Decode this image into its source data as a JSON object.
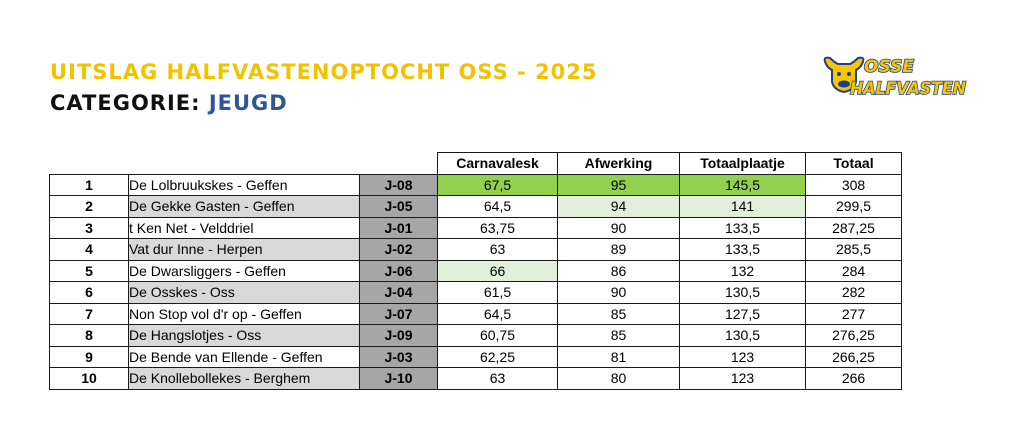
{
  "header": {
    "title": "UITSLAG HALFVASTENOPTOCHT OSS - 2025",
    "subtitle_prefix": "CATEGORIE: ",
    "category": "JEUGD"
  },
  "logo": {
    "line1": "OSSE",
    "line2": "HALFVASTEN",
    "colors": {
      "yellow": "#f6c600",
      "blue": "#1f3e8c"
    }
  },
  "table": {
    "columns": [
      "Carnavalesk",
      "Afwerking",
      "Totaalplaatje",
      "Totaal"
    ],
    "rows": [
      {
        "rank": "1",
        "name": "De Lolbruukskes - Geffen",
        "code": "J-08",
        "carnavalesk": "67,5",
        "afwerking": "95",
        "totaalplaatje": "145,5",
        "totaal": "308"
      },
      {
        "rank": "2",
        "name": "De Gekke Gasten - Geffen",
        "code": "J-05",
        "carnavalesk": "64,5",
        "afwerking": "94",
        "totaalplaatje": "141",
        "totaal": "299,5"
      },
      {
        "rank": "3",
        "name": "t Ken Net - Velddriel",
        "code": "J-01",
        "carnavalesk": "63,75",
        "afwerking": "90",
        "totaalplaatje": "133,5",
        "totaal": "287,25"
      },
      {
        "rank": "4",
        "name": "Vat dur Inne - Herpen",
        "code": "J-02",
        "carnavalesk": "63",
        "afwerking": "89",
        "totaalplaatje": "133,5",
        "totaal": "285,5"
      },
      {
        "rank": "5",
        "name": "De Dwarsliggers - Geffen",
        "code": "J-06",
        "carnavalesk": "66",
        "afwerking": "86",
        "totaalplaatje": "132",
        "totaal": "284"
      },
      {
        "rank": "6",
        "name": "De Osskes - Oss",
        "code": "J-04",
        "carnavalesk": "61,5",
        "afwerking": "90",
        "totaalplaatje": "130,5",
        "totaal": "282"
      },
      {
        "rank": "7",
        "name": "Non Stop vol d'r op - Geffen",
        "code": "J-07",
        "carnavalesk": "64,5",
        "afwerking": "85",
        "totaalplaatje": "127,5",
        "totaal": "277"
      },
      {
        "rank": "8",
        "name": "De Hangslotjes - Oss",
        "code": "J-09",
        "carnavalesk": "60,75",
        "afwerking": "85",
        "totaalplaatje": "130,5",
        "totaal": "276,25"
      },
      {
        "rank": "9",
        "name": "De Bende van Ellende - Geffen",
        "code": "J-03",
        "carnavalesk": "62,25",
        "afwerking": "81",
        "totaalplaatje": "123",
        "totaal": "266,25"
      },
      {
        "rank": "10",
        "name": "De Knollebollekes - Berghem",
        "code": "J-10",
        "carnavalesk": "63",
        "afwerking": "80",
        "totaalplaatje": "123",
        "totaal": "266"
      }
    ],
    "highlight_colors": {
      "best": "#92d050",
      "second": "#e2efda",
      "code_bg": "#a6a6a6",
      "alt_name_bg": "#d9d9d9"
    }
  }
}
